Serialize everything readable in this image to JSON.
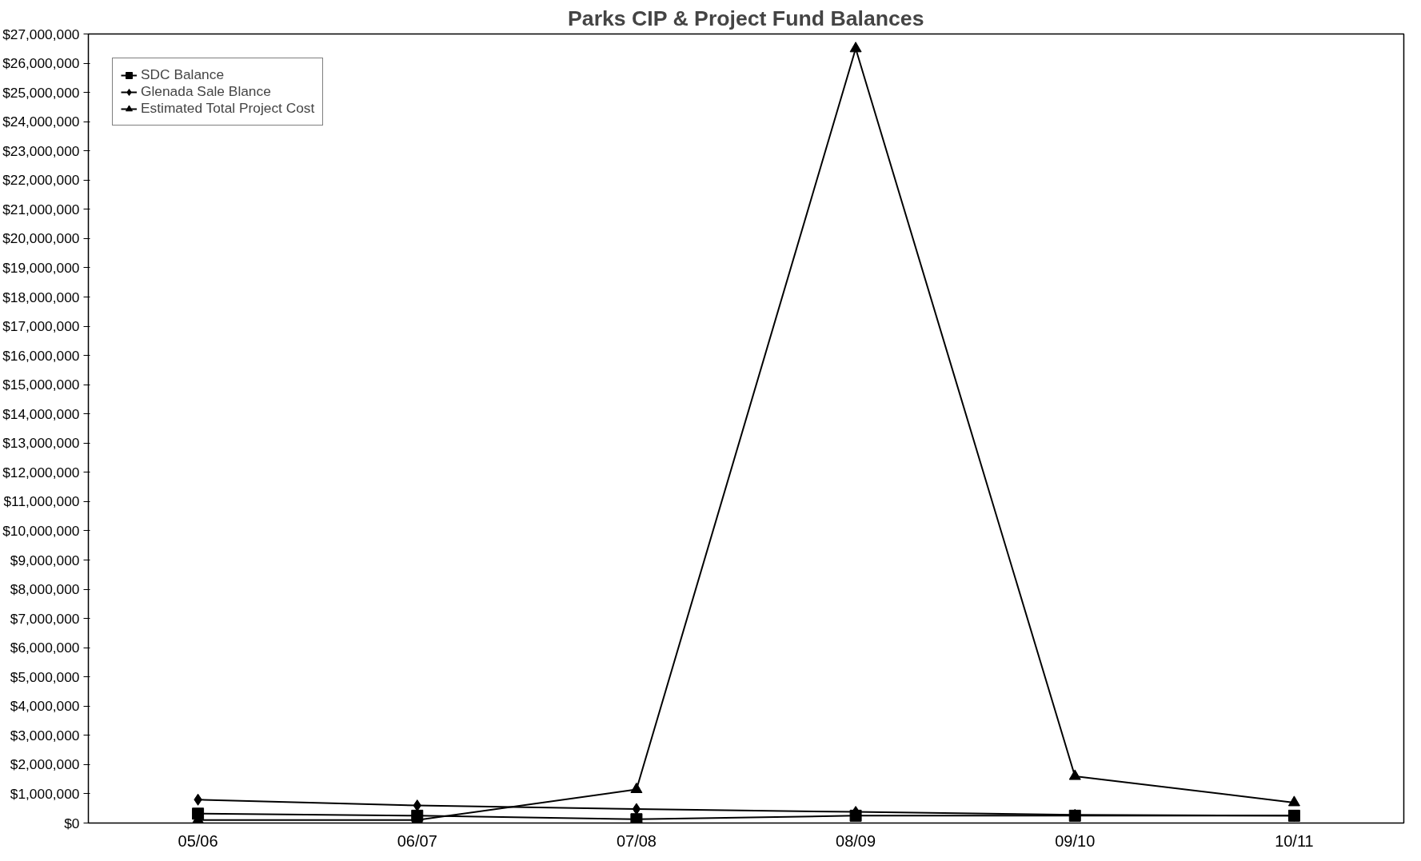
{
  "chart_data": {
    "type": "line",
    "title": "Parks CIP & Project Fund Balances",
    "categories": [
      "05/06",
      "06/07",
      "07/08",
      "08/09",
      "09/10",
      "10/11"
    ],
    "series": [
      {
        "name": "SDC Balance",
        "color": "#000000",
        "marker": "square",
        "values": [
          320000,
          250000,
          130000,
          250000,
          250000,
          250000
        ]
      },
      {
        "name": "Glenada Sale Blance",
        "color": "#000000",
        "marker": "diamond",
        "values": [
          800000,
          600000,
          480000,
          380000,
          280000,
          250000
        ]
      },
      {
        "name": "Estimated Total Project Cost",
        "color": "#000000",
        "marker": "triangle",
        "values": [
          100000,
          100000,
          1150000,
          26500000,
          1600000,
          700000
        ]
      }
    ],
    "ylim": [
      0,
      27000000
    ],
    "yticks": [
      {
        "value": 0,
        "label": "$0"
      },
      {
        "value": 1000000,
        "label": "$1,000,000"
      },
      {
        "value": 2000000,
        "label": "$2,000,000"
      },
      {
        "value": 3000000,
        "label": "$3,000,000"
      },
      {
        "value": 4000000,
        "label": "$4,000,000"
      },
      {
        "value": 5000000,
        "label": "$5,000,000"
      },
      {
        "value": 6000000,
        "label": "$6,000,000"
      },
      {
        "value": 7000000,
        "label": "$7,000,000"
      },
      {
        "value": 8000000,
        "label": "$8,000,000"
      },
      {
        "value": 9000000,
        "label": "$9,000,000"
      },
      {
        "value": 10000000,
        "label": "$10,000,000"
      },
      {
        "value": 11000000,
        "label": "$11,000,000"
      },
      {
        "value": 12000000,
        "label": "$12,000,000"
      },
      {
        "value": 13000000,
        "label": "$13,000,000"
      },
      {
        "value": 14000000,
        "label": "$14,000,000"
      },
      {
        "value": 15000000,
        "label": "$15,000,000"
      },
      {
        "value": 16000000,
        "label": "$16,000,000"
      },
      {
        "value": 17000000,
        "label": "$17,000,000"
      },
      {
        "value": 18000000,
        "label": "$18,000,000"
      },
      {
        "value": 19000000,
        "label": "$19,000,000"
      },
      {
        "value": 20000000,
        "label": "$20,000,000"
      },
      {
        "value": 21000000,
        "label": "$21,000,000"
      },
      {
        "value": 22000000,
        "label": "$22,000,000"
      },
      {
        "value": 23000000,
        "label": "$23,000,000"
      },
      {
        "value": 24000000,
        "label": "$24,000,000"
      },
      {
        "value": 25000000,
        "label": "$25,000,000"
      },
      {
        "value": 26000000,
        "label": "$26,000,000"
      },
      {
        "value": 27000000,
        "label": "$27,000,000"
      }
    ],
    "grid": false,
    "legend": "top left",
    "line_style": "solid"
  }
}
